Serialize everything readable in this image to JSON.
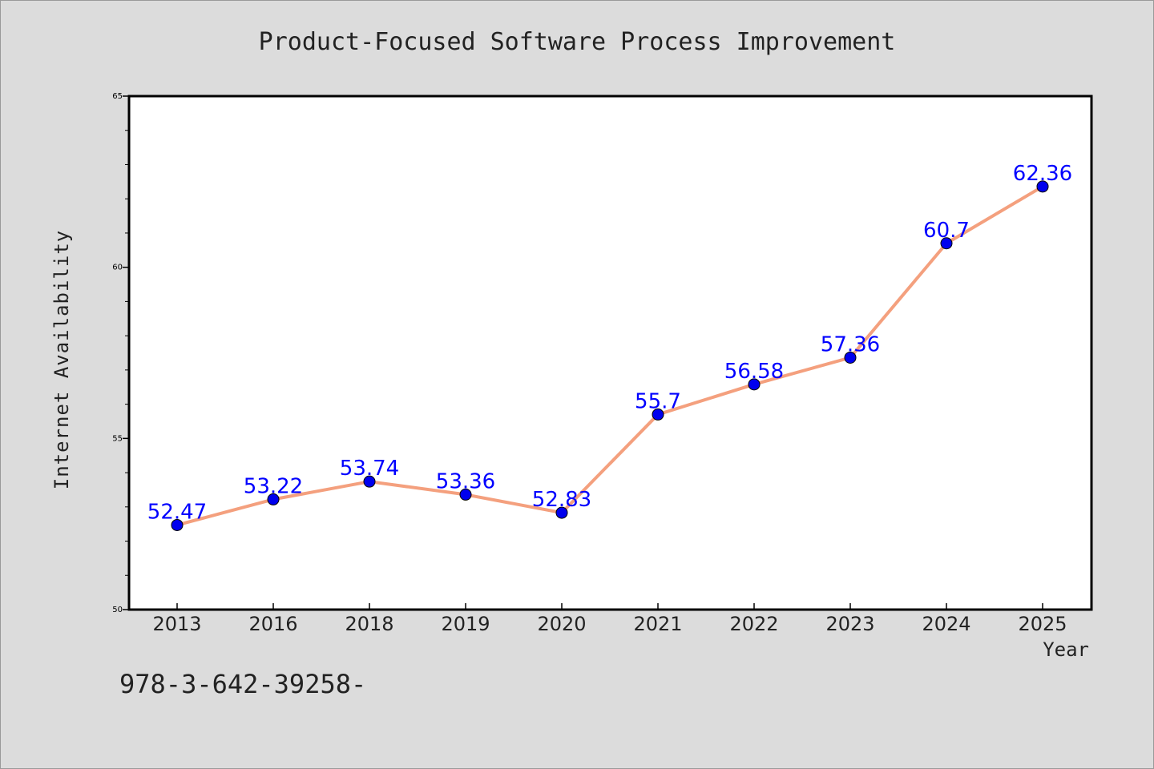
{
  "chart_data": {
    "type": "line",
    "title": "Product-Focused Software Process Improvement",
    "xlabel": "Year",
    "ylabel": "Internet Availability",
    "categories": [
      "2013",
      "2016",
      "2018",
      "2019",
      "2020",
      "2021",
      "2022",
      "2023",
      "2024",
      "2025"
    ],
    "series": [
      {
        "values": [
          52.47,
          53.22,
          53.74,
          53.36,
          52.83,
          55.7,
          56.58,
          57.36,
          60.7,
          62.36
        ]
      }
    ],
    "data_labels": [
      "52.47",
      "53.22",
      "53.74",
      "53.36",
      "52.83",
      "55.7",
      "56.58",
      "57.36",
      "60.7",
      "62.36"
    ],
    "ylim": [
      50,
      65
    ],
    "yticks": [
      50,
      55,
      60,
      65
    ],
    "ytick_labels": [
      "50",
      "55",
      "60",
      "65"
    ],
    "grid": false,
    "line_color": "#f4a07e",
    "marker_color": "#0000ee",
    "label_color": "#0000ff"
  },
  "footer_text": "978-3-642-39258-"
}
